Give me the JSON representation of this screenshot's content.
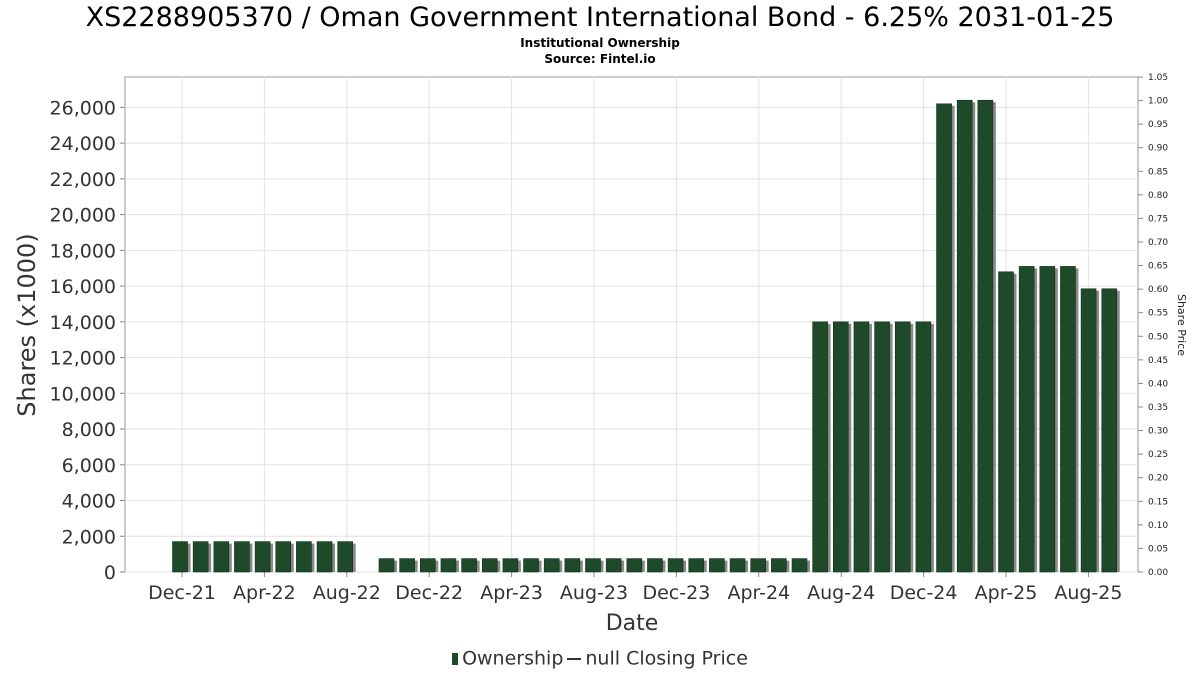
{
  "title": "XS2288905370 / Oman Government International Bond - 6.25% 2031-01-25",
  "subtitle": "Institutional Ownership",
  "source": "Source: Fintel.io",
  "legend": {
    "ownership_label": "Ownership",
    "closing_price_label": "null Closing Price"
  },
  "colors": {
    "bar": "#1e4a2a",
    "bar_shadow": "#8a8a8a",
    "grid": "#e2e2e2"
  },
  "chart_data": {
    "type": "bar",
    "xlabel": "Date",
    "ylabel": "Shares (x1000)",
    "y2label": "Share Price",
    "ylim": [
      0,
      27700
    ],
    "y2lim": [
      0,
      1.05
    ],
    "yticks": [
      "0",
      "2,000",
      "4,000",
      "6,000",
      "8,000",
      "10,000",
      "12,000",
      "14,000",
      "16,000",
      "18,000",
      "20,000",
      "22,000",
      "24,000",
      "26,000"
    ],
    "y2ticks": [
      "0.00",
      "0.05",
      "0.10",
      "0.15",
      "0.20",
      "0.25",
      "0.30",
      "0.35",
      "0.40",
      "0.45",
      "0.50",
      "0.55",
      "0.60",
      "0.65",
      "0.70",
      "0.75",
      "0.80",
      "0.85",
      "0.90",
      "0.95",
      "1.00",
      "1.05"
    ],
    "xticks": [
      "Dec-21",
      "Apr-22",
      "Aug-22",
      "Dec-22",
      "Apr-23",
      "Aug-23",
      "Dec-23",
      "Apr-24",
      "Aug-24",
      "Dec-24",
      "Apr-25",
      "Aug-25"
    ],
    "grid": true,
    "series": [
      {
        "name": "Ownership",
        "values": [
          1700,
          1700,
          1700,
          1700,
          1700,
          1700,
          1700,
          1700,
          1700,
          750,
          750,
          750,
          750,
          750,
          750,
          750,
          750,
          750,
          750,
          750,
          750,
          750,
          750,
          750,
          750,
          750,
          750,
          750,
          750,
          750,
          14000,
          14000,
          14000,
          14000,
          14000,
          14000,
          26200,
          26400,
          26400,
          16800,
          17100,
          17100,
          17100,
          15850,
          15850
        ]
      }
    ]
  }
}
